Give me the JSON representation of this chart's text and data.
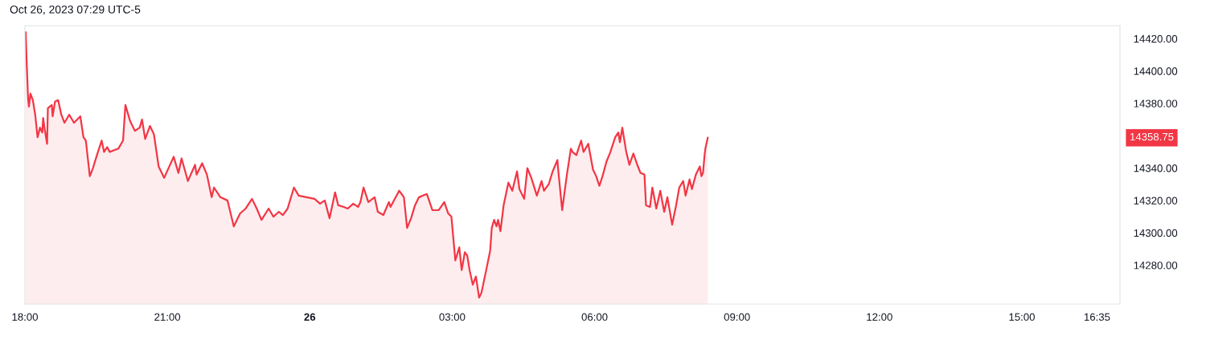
{
  "chart_data": {
    "type": "area",
    "title": "Oct 26, 2023 07:29 UTC-5",
    "color": "#f23645",
    "x": [
      "2023-10-25T18:01",
      "2023-10-25T18:02",
      "2023-10-25T18:04",
      "2023-10-25T18:05",
      "2023-10-25T18:07",
      "2023-10-25T18:10",
      "2023-10-25T18:13",
      "2023-10-25T18:16",
      "2023-10-25T18:19",
      "2023-10-25T18:22",
      "2023-10-25T18:23",
      "2023-10-25T18:25",
      "2023-10-25T18:28",
      "2023-10-25T18:29",
      "2023-10-25T18:34",
      "2023-10-25T18:35",
      "2023-10-25T18:38",
      "2023-10-25T18:42",
      "2023-10-25T18:46",
      "2023-10-25T18:50",
      "2023-10-25T18:56",
      "2023-10-25T19:02",
      "2023-10-25T19:10",
      "2023-10-25T19:14",
      "2023-10-25T19:17",
      "2023-10-25T19:22",
      "2023-10-25T19:26",
      "2023-10-25T19:31",
      "2023-10-25T19:37",
      "2023-10-25T19:40",
      "2023-10-25T19:44",
      "2023-10-25T19:47",
      "2023-10-25T19:58",
      "2023-10-25T20:04",
      "2023-10-25T20:07",
      "2023-10-25T20:13",
      "2023-10-25T20:19",
      "2023-10-25T20:25",
      "2023-10-25T20:28",
      "2023-10-25T20:32",
      "2023-10-25T20:38",
      "2023-10-25T20:43",
      "2023-10-25T20:49",
      "2023-10-25T20:56",
      "2023-10-25T21:08",
      "2023-10-25T21:14",
      "2023-10-25T21:18",
      "2023-10-25T21:26",
      "2023-10-25T21:35",
      "2023-10-25T21:37",
      "2023-10-25T21:44",
      "2023-10-25T21:50",
      "2023-10-25T21:56",
      "2023-10-25T21:59",
      "2023-10-25T22:07",
      "2023-10-25T22:16",
      "2023-10-25T22:24",
      "2023-10-25T22:28",
      "2023-10-25T22:32",
      "2023-10-25T22:39",
      "2023-10-25T22:47",
      "2023-10-25T22:53",
      "2023-10-25T22:59",
      "2023-10-25T23:08",
      "2023-10-25T23:14",
      "2023-10-25T23:21",
      "2023-10-25T23:26",
      "2023-10-25T23:32",
      "2023-10-25T23:40",
      "2023-10-25T23:46",
      "2023-10-25T23:56",
      "2023-10-26T00:06",
      "2023-10-26T00:13",
      "2023-10-26T00:19",
      "2023-10-26T00:25",
      "2023-10-26T00:32",
      "2023-10-26T00:36",
      "2023-10-26T00:43",
      "2023-10-26T00:48",
      "2023-10-26T00:55",
      "2023-10-26T01:01",
      "2023-10-26T01:04",
      "2023-10-26T01:08",
      "2023-10-26T01:14",
      "2023-10-26T01:22",
      "2023-10-26T01:26",
      "2023-10-26T01:33",
      "2023-10-26T01:40",
      "2023-10-26T01:42",
      "2023-10-26T01:53",
      "2023-10-26T01:59",
      "2023-10-26T02:03",
      "2023-10-26T02:08",
      "2023-10-26T02:13",
      "2023-10-26T02:18",
      "2023-10-26T02:28",
      "2023-10-26T02:35",
      "2023-10-26T02:43",
      "2023-10-26T02:50",
      "2023-10-26T02:55",
      "2023-10-26T02:59",
      "2023-10-26T03:04",
      "2023-10-26T03:09",
      "2023-10-26T03:12",
      "2023-10-26T03:16",
      "2023-10-26T03:19",
      "2023-10-26T03:22",
      "2023-10-26T03:26",
      "2023-10-26T03:30",
      "2023-10-26T03:34",
      "2023-10-26T03:37",
      "2023-10-26T03:43",
      "2023-10-26T03:48",
      "2023-10-26T03:50",
      "2023-10-26T03:53",
      "2023-10-26T03:56",
      "2023-10-26T03:58",
      "2023-10-26T04:01",
      "2023-10-26T04:05",
      "2023-10-26T04:11",
      "2023-10-26T04:16",
      "2023-10-26T04:22",
      "2023-10-26T04:25",
      "2023-10-26T04:31",
      "2023-10-26T04:35",
      "2023-10-26T04:40",
      "2023-10-26T04:47",
      "2023-10-26T04:53",
      "2023-10-26T04:56",
      "2023-10-26T05:02",
      "2023-10-26T05:07",
      "2023-10-26T05:13",
      "2023-10-26T05:14",
      "2023-10-26T05:19",
      "2023-10-26T05:25",
      "2023-10-26T05:30",
      "2023-10-26T05:32",
      "2023-10-26T05:37",
      "2023-10-26T05:43",
      "2023-10-26T05:46",
      "2023-10-26T05:52",
      "2023-10-26T05:58",
      "2023-10-26T06:02",
      "2023-10-26T06:06",
      "2023-10-26T06:10",
      "2023-10-26T06:15",
      "2023-10-26T06:20",
      "2023-10-26T06:26",
      "2023-10-26T06:30",
      "2023-10-26T06:32",
      "2023-10-26T06:35",
      "2023-10-26T06:40",
      "2023-10-26T06:44",
      "2023-10-26T06:49",
      "2023-10-26T06:54",
      "2023-10-26T06:58",
      "2023-10-26T07:03",
      "2023-10-26T07:05",
      "2023-10-26T07:10",
      "2023-10-26T07:13",
      "2023-10-26T07:18",
      "2023-10-26T07:23",
      "2023-10-26T07:28",
      "2023-10-26T07:32",
      "2023-10-26T07:38",
      "2023-10-26T07:43",
      "2023-10-26T07:47",
      "2023-10-26T07:52",
      "2023-10-26T07:55",
      "2023-10-26T08:00",
      "2023-10-26T08:03",
      "2023-10-26T08:08",
      "2023-10-26T08:13",
      "2023-10-26T08:15",
      "2023-10-26T08:17",
      "2023-10-26T08:19",
      "2023-10-26T08:20",
      "2023-10-26T08:23"
    ],
    "values": [
      14424,
      14408,
      14383,
      14378,
      14386,
      14382,
      14373,
      14359,
      14365,
      14362,
      14371,
      14364,
      14355,
      14377,
      14379,
      14372,
      14381,
      14382,
      14373,
      14368,
      14373,
      14368,
      14372,
      14359,
      14357,
      14335,
      14340,
      14348,
      14357,
      14350,
      14353,
      14350,
      14352,
      14357,
      14379,
      14369,
      14363,
      14365,
      14370,
      14358,
      14366,
      14361,
      14341,
      14334,
      14347,
      14337,
      14346,
      14332,
      14342,
      14336,
      14343,
      14336,
      14322,
      14328,
      14322,
      14320,
      14304,
      14308,
      14312,
      14315,
      14321,
      14315,
      14308,
      14315,
      14310,
      14313,
      14311,
      14315,
      14328,
      14323,
      14322,
      14321,
      14318,
      14320,
      14309,
      14325,
      14317,
      14316,
      14315,
      14318,
      14316,
      14319,
      14328,
      14319,
      14322,
      14313,
      14311,
      14319,
      14316,
      14326,
      14322,
      14303,
      14309,
      14317,
      14322,
      14324,
      14314,
      14314,
      14319,
      14312,
      14310,
      14283,
      14291,
      14277,
      14288,
      14286,
      14277,
      14268,
      14273,
      14260,
      14263,
      14277,
      14289,
      14303,
      14308,
      14304,
      14308,
      14301,
      14317,
      14331,
      14326,
      14338,
      14327,
      14321,
      14340,
      14334,
      14323,
      14332,
      14326,
      14330,
      14338,
      14345,
      14339,
      14314,
      14336,
      14352,
      14350,
      14348,
      14357,
      14350,
      14355,
      14339,
      14335,
      14329,
      14335,
      14344,
      14350,
      14359,
      14362,
      14356,
      14365,
      14350,
      14342,
      14349,
      14342,
      14337,
      14336,
      14317,
      14316,
      14328,
      14315,
      14326,
      14313,
      14322,
      14305,
      14317,
      14328,
      14332,
      14323,
      14333,
      14327,
      14336,
      14341,
      14335,
      14337,
      14348,
      14352,
      14358.75
    ],
    "xlim": [
      "2023-10-25T18:00",
      "2023-10-26T17:04"
    ],
    "ylim": [
      14256,
      14428
    ],
    "xticks": [
      {
        "value": "2023-10-25T18:00",
        "label": "18:00"
      },
      {
        "value": "2023-10-25T21:00",
        "label": "21:00"
      },
      {
        "value": "2023-10-26T00:00",
        "label": "26"
      },
      {
        "value": "2023-10-26T03:00",
        "label": "03:00"
      },
      {
        "value": "2023-10-26T06:00",
        "label": "06:00"
      },
      {
        "value": "2023-10-26T09:00",
        "label": "09:00"
      },
      {
        "value": "2023-10-26T12:00",
        "label": "12:00"
      },
      {
        "value": "2023-10-26T15:00",
        "label": "15:00"
      },
      {
        "value": "2023-10-26T16:35",
        "label": "16:35"
      }
    ],
    "yticks": [
      {
        "value": 14280,
        "label": "14280.00"
      },
      {
        "value": 14300,
        "label": "14300.00"
      },
      {
        "value": 14320,
        "label": "14320.00"
      },
      {
        "value": 14340,
        "label": "14340.00"
      },
      {
        "value": 14380,
        "label": "14380.00"
      },
      {
        "value": 14400,
        "label": "14400.00"
      },
      {
        "value": 14420,
        "label": "14420.00"
      }
    ],
    "annotations": [
      "14358.75"
    ]
  }
}
